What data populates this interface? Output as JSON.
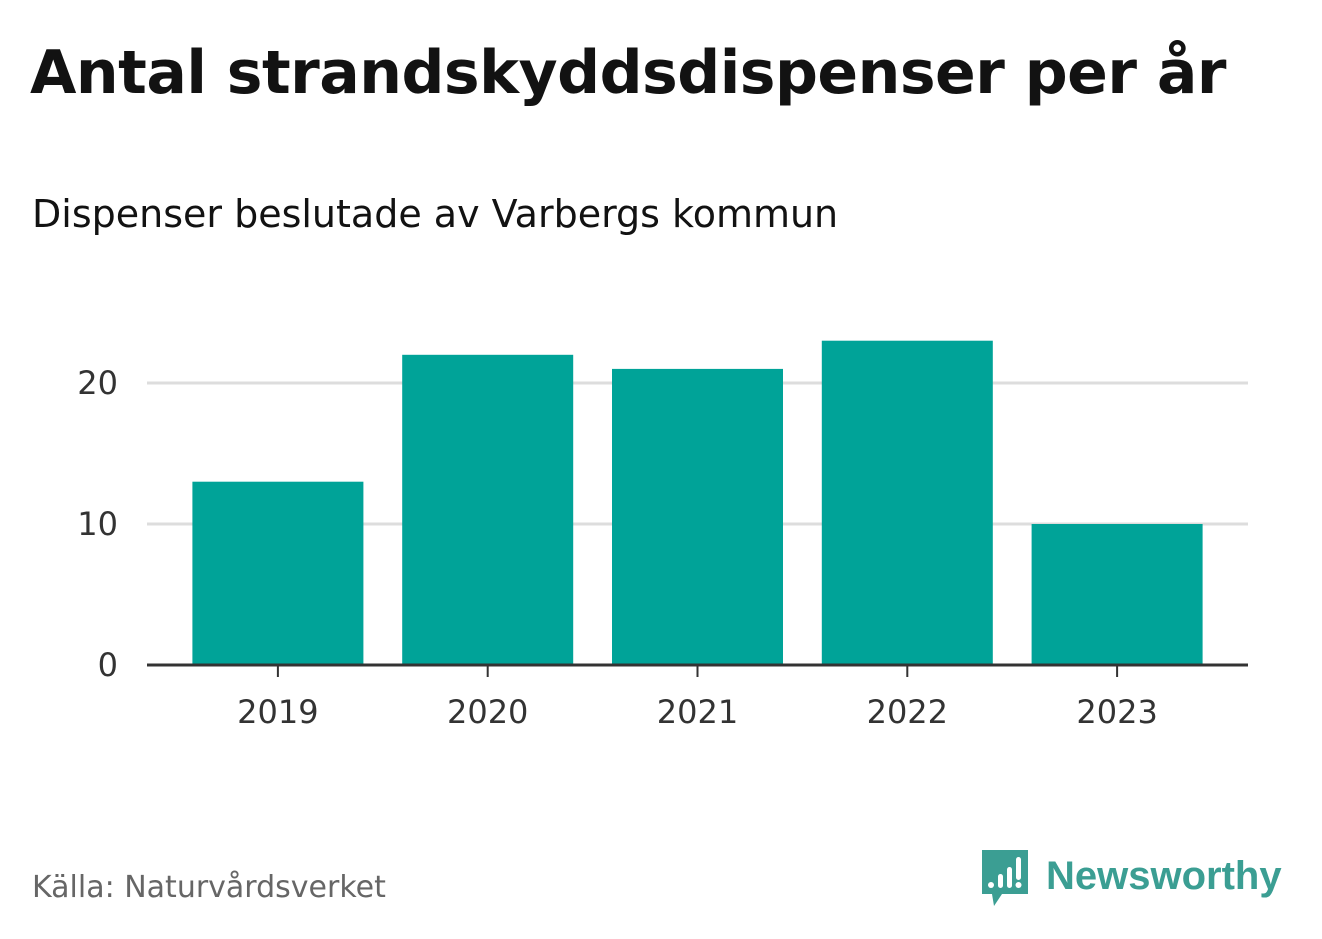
{
  "header": {
    "title": "Antal strandskyddsdispenser per år",
    "subtitle": "Dispenser beslutade av Varbergs kommun"
  },
  "footer": {
    "source": "Källa: Naturvårdsverket",
    "brand": "Newsworthy"
  },
  "colors": {
    "bar": "#00a398",
    "grid": "#dddddd",
    "axis": "#333333",
    "brand": "#3b9e93"
  },
  "chart_data": {
    "type": "bar",
    "title": "Antal strandskyddsdispenser per år",
    "subtitle": "Dispenser beslutade av Varbergs kommun",
    "categories": [
      "2019",
      "2020",
      "2021",
      "2022",
      "2023"
    ],
    "values": [
      13,
      22,
      21,
      23,
      10
    ],
    "yticks": [
      0,
      10,
      20
    ],
    "ylim": [
      0,
      23
    ],
    "xlabel": "",
    "ylabel": "",
    "grid": true,
    "legend": "none"
  }
}
